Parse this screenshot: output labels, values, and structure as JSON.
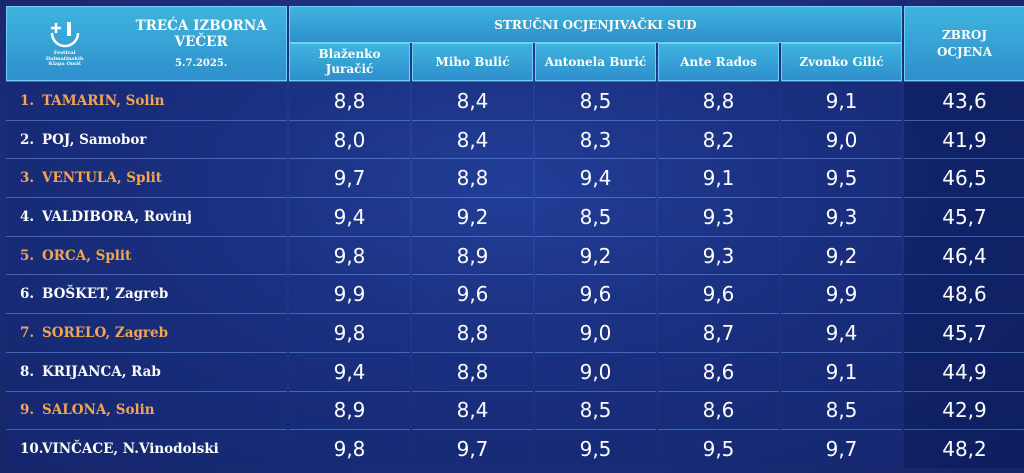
{
  "header": {
    "title": "TREĆA IZBORNA VEČER",
    "date": "5.7.2025.",
    "jury_title": "STRUČNI OCJENJIVAČKI SUD",
    "total_line1": "ZBROJ",
    "total_line2": "OCJENA",
    "logo_text_1": "Festival",
    "logo_text_2": "Dalmatinskih",
    "logo_text_3": "Klapa Omiš"
  },
  "judges": [
    {
      "line1": "Blaženko",
      "line2": "Juračić"
    },
    {
      "line1": "Miho Bulić",
      "line2": ""
    },
    {
      "line1": "Antonela Burić",
      "line2": ""
    },
    {
      "line1": "Ante Rados",
      "line2": ""
    },
    {
      "line1": "Zvonko Gilić",
      "line2": ""
    }
  ],
  "rows": [
    {
      "num": "1.",
      "name": "TAMARIN, Solin",
      "scores": [
        "8,8",
        "8,4",
        "8,5",
        "8,8",
        "9,1"
      ],
      "total": "43,6"
    },
    {
      "num": "2.",
      "name": "POJ, Samobor",
      "scores": [
        "8,0",
        "8,4",
        "8,3",
        "8,2",
        "9,0"
      ],
      "total": "41,9"
    },
    {
      "num": "3.",
      "name": "VENTULA, Split",
      "scores": [
        "9,7",
        "8,8",
        "9,4",
        "9,1",
        "9,5"
      ],
      "total": "46,5"
    },
    {
      "num": "4.",
      "name": "VALDIBORA, Rovinj",
      "scores": [
        "9,4",
        "9,2",
        "8,5",
        "9,3",
        "9,3"
      ],
      "total": "45,7"
    },
    {
      "num": "5.",
      "name": "ORCA, Split",
      "scores": [
        "9,8",
        "8,9",
        "9,2",
        "9,3",
        "9,2"
      ],
      "total": "46,4"
    },
    {
      "num": "6.",
      "name": "BOŠKET, Zagreb",
      "scores": [
        "9,9",
        "9,6",
        "9,6",
        "9,6",
        "9,9"
      ],
      "total": "48,6"
    },
    {
      "num": "7.",
      "name": "SORELO, Zagreb",
      "scores": [
        "9,8",
        "8,8",
        "9,0",
        "8,7",
        "9,4"
      ],
      "total": "45,7"
    },
    {
      "num": "8.",
      "name": "KRIJANCA, Rab",
      "scores": [
        "9,4",
        "8,8",
        "9,0",
        "8,6",
        "9,1"
      ],
      "total": "44,9"
    },
    {
      "num": "9.",
      "name": "SALONA, Solin",
      "scores": [
        "8,9",
        "8,4",
        "8,5",
        "8,6",
        "8,5"
      ],
      "total": "42,9"
    },
    {
      "num": "10.",
      "name": "VINČACE, N.Vinodolski",
      "scores": [
        "9,8",
        "9,7",
        "9,5",
        "9,5",
        "9,7"
      ],
      "total": "48,2"
    }
  ],
  "colors": {
    "highlight_rows": "#f3a552",
    "header_bg": "#3fb4df",
    "background": "#1d3382"
  }
}
